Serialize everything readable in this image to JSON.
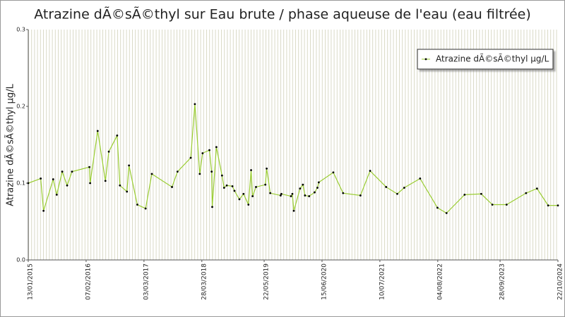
{
  "chart_data": {
    "type": "line",
    "title": "Atrazine dÃ©sÃ©thyl sur Eau brute / phase aqueuse de l'eau (eau filtrée)",
    "y_label": "Atrazine dÃ©sÃ©thyl µg/L",
    "x": [
      "13/01/2015",
      "07/04/2015",
      "26/04/2015",
      "30/06/2015",
      "24/07/2015",
      "30/08/2015",
      "02/10/2015",
      "04/11/2015",
      "29/02/2016",
      "05/03/2016",
      "25/04/2016",
      "16/06/2016",
      "09/07/2016",
      "03/09/2016",
      "22/09/2016",
      "08/11/2016",
      "22/11/2016",
      "17/01/2017",
      "14/03/2017",
      "25/04/2017",
      "08/09/2017",
      "15/10/2017",
      "12/01/2018",
      "09/02/2018",
      "14/03/2018",
      "02/04/2018",
      "18/05/2018",
      "02/06/2018",
      "06/06/2018",
      "04/07/2018",
      "11/08/2018",
      "25/08/2018",
      "12/09/2018",
      "20/10/2018",
      "03/11/2018",
      "06/12/2018",
      "03/01/2019",
      "05/02/2019",
      "23/02/2019",
      "05/03/2019",
      "28/03/2019",
      "30/05/2019",
      "08/06/2019",
      "02/07/2019",
      "10/09/2019",
      "15/09/2019",
      "19/11/2019",
      "28/11/2019",
      "08/12/2019",
      "19/01/2020",
      "07/02/2020",
      "21/02/2020",
      "20/03/2020",
      "26/04/2020",
      "15/05/2020",
      "24/05/2020",
      "30/08/2020",
      "04/11/2020",
      "01/03/2021",
      "05/05/2021",
      "21/08/2021",
      "04/11/2021",
      "21/12/2021",
      "07/04/2022",
      "02/08/2022",
      "02/10/2022",
      "01/02/2023",
      "24/05/2023",
      "07/08/2023",
      "11/11/2023",
      "21/03/2024",
      "03/06/2024",
      "17/08/2024",
      "22/10/2024"
    ],
    "series": [
      {
        "name": "Atrazine dÃ©sÃ©thyl µg/L",
        "color": "#9acd32",
        "marker_color": "#000000",
        "values": [
          0.1,
          0.106,
          0.064,
          0.105,
          0.085,
          0.115,
          0.097,
          0.115,
          0.121,
          0.1,
          0.168,
          0.103,
          0.141,
          0.162,
          0.097,
          0.089,
          0.123,
          0.072,
          0.067,
          0.112,
          0.095,
          0.115,
          0.133,
          0.203,
          0.112,
          0.139,
          0.143,
          0.115,
          0.069,
          0.147,
          0.11,
          0.094,
          0.097,
          0.096,
          0.09,
          0.079,
          0.086,
          0.072,
          0.117,
          0.083,
          0.095,
          0.098,
          0.119,
          0.087,
          0.084,
          0.086,
          0.083,
          0.086,
          0.064,
          0.093,
          0.098,
          0.084,
          0.083,
          0.088,
          0.094,
          0.101,
          0.114,
          0.087,
          0.084,
          0.116,
          0.095,
          0.086,
          0.094,
          0.106,
          0.068,
          0.061,
          0.085,
          0.086,
          0.072,
          0.072,
          0.087,
          0.093,
          0.071,
          0.071
        ]
      }
    ],
    "xlim": [
      "13/01/2015",
      "22/10/2024"
    ],
    "xticks": [
      "13/01/2015",
      "07/02/2016",
      "03/03/2017",
      "28/03/2018",
      "22/05/2019",
      "15/06/2020",
      "10/07/2021",
      "04/08/2022",
      "28/09/2023",
      "22/10/2024"
    ],
    "ylim": [
      0,
      0.3
    ],
    "yticks": [
      {
        "value": 0,
        "label": "0.0"
      },
      0.1,
      0.2,
      0.3
    ],
    "legend": "top-right"
  }
}
